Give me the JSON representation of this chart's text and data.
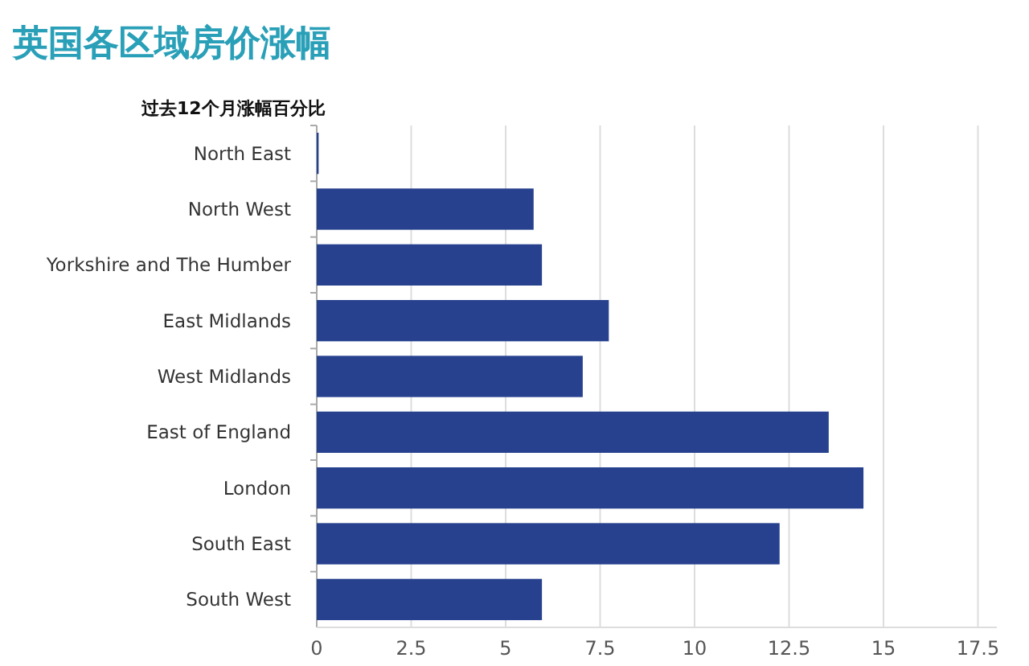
{
  "chart_data": {
    "type": "bar",
    "orientation": "horizontal",
    "title": "英国各区域房价涨幅",
    "subtitle": "过去12个月涨幅百分比",
    "categories": [
      "North East",
      "North West",
      "Yorkshire and The Humber",
      "East Midlands",
      "West Midlands",
      "East of England",
      "London",
      "South East",
      "South West"
    ],
    "values": [
      0.05,
      5.74,
      5.96,
      7.73,
      7.04,
      13.55,
      14.47,
      12.25,
      5.96
    ],
    "color": "#27418f",
    "xlim": [
      0,
      18
    ],
    "xticks": [
      0,
      2.5,
      5,
      7.5,
      10,
      12.5,
      15,
      17.5
    ],
    "grid": "x"
  }
}
